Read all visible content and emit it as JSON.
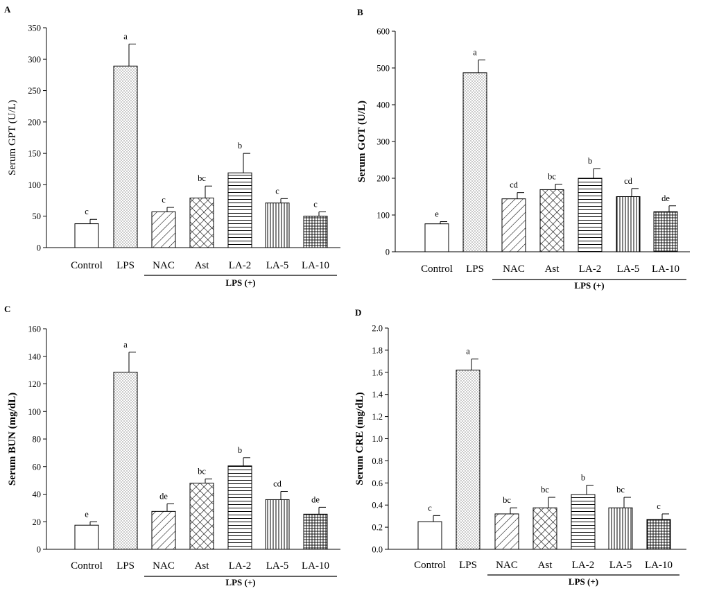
{
  "chart_data": [
    {
      "type": "bar",
      "panel_label": "A",
      "ylabel": "Serum GPT (U/L)",
      "ylim": [
        0,
        350
      ],
      "yticks": [
        0,
        50,
        100,
        150,
        200,
        250,
        300,
        350
      ],
      "categories": [
        "Control",
        "LPS",
        "NAC",
        "Ast",
        "LA-2",
        "LA-5",
        "LA-10"
      ],
      "values": [
        38,
        289,
        57,
        79,
        119,
        71,
        50
      ],
      "errors": [
        7,
        35,
        7,
        19,
        31,
        7,
        7
      ],
      "letters": [
        "c",
        "a",
        "c",
        "bc",
        "b",
        "c",
        "c"
      ],
      "group_label": "LPS (+)",
      "legend": "none"
    },
    {
      "type": "bar",
      "panel_label": "B",
      "ylabel": "Serum GOT (U/L)",
      "ylim": [
        0,
        600
      ],
      "yticks": [
        0,
        100,
        200,
        300,
        400,
        500,
        600
      ],
      "categories": [
        "Control",
        "LPS",
        "NAC",
        "Ast",
        "LA-2",
        "LA-5",
        "LA-10"
      ],
      "values": [
        76,
        487,
        144,
        169,
        200,
        150,
        109
      ],
      "errors": [
        6,
        35,
        17,
        15,
        26,
        22,
        16
      ],
      "letters": [
        "e",
        "a",
        "cd",
        "bc",
        "b",
        "cd",
        "de"
      ],
      "group_label": "LPS (+)",
      "legend": "none"
    },
    {
      "type": "bar",
      "panel_label": "C",
      "ylabel": "Serum BUN (mg/dL)",
      "ylim": [
        0,
        160
      ],
      "yticks": [
        0,
        20,
        40,
        60,
        80,
        100,
        120,
        140,
        160
      ],
      "categories": [
        "Control",
        "LPS",
        "NAC",
        "Ast",
        "LA-2",
        "LA-5",
        "LA-10"
      ],
      "values": [
        17.5,
        128.5,
        27.5,
        48,
        60.5,
        36,
        25.5
      ],
      "errors": [
        2.5,
        14.5,
        5.5,
        3,
        6,
        6,
        5
      ],
      "letters": [
        "e",
        "a",
        "de",
        "bc",
        "b",
        "cd",
        "de"
      ],
      "group_label": "LPS (+)",
      "legend": "none"
    },
    {
      "type": "bar",
      "panel_label": "D",
      "ylabel": "Serum CRE (mg/dL)",
      "ylim": [
        0,
        2.0
      ],
      "yticks": [
        "0.0",
        "0.2",
        "0.4",
        "0.6",
        "0.8",
        "1.0",
        "1.2",
        "1.4",
        "1.6",
        "1.8",
        "2.0"
      ],
      "categories": [
        "Control",
        "LPS",
        "NAC",
        "Ast",
        "LA-2",
        "LA-5",
        "LA-10"
      ],
      "values": [
        0.25,
        1.62,
        0.32,
        0.375,
        0.495,
        0.375,
        0.27
      ],
      "errors": [
        0.055,
        0.1,
        0.055,
        0.095,
        0.085,
        0.095,
        0.05
      ],
      "letters": [
        "c",
        "a",
        "bc",
        "bc",
        "b",
        "bc",
        "c"
      ],
      "group_label": "LPS (+)",
      "legend": "none"
    }
  ]
}
